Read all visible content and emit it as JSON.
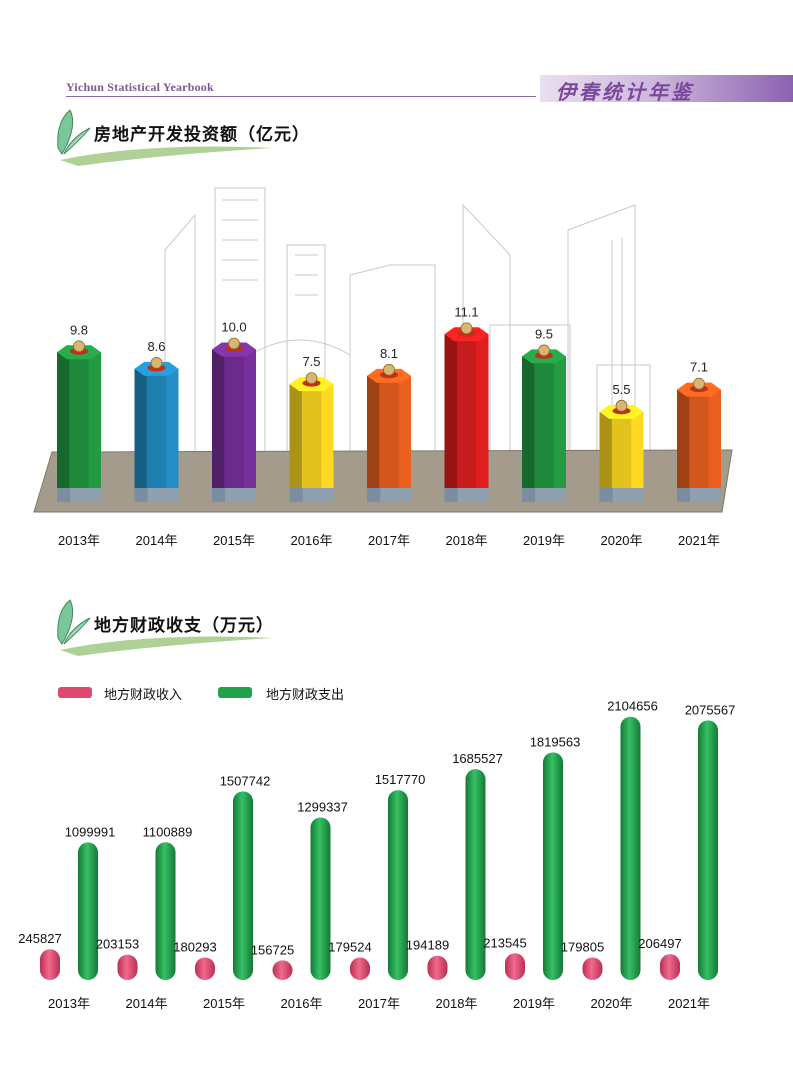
{
  "header": {
    "left_text": "Yichun Statistical Yearbook",
    "right_text": "伊春统计年鉴"
  },
  "colors": {
    "income": "#e0476f",
    "expense": "#1fa24a",
    "header_purple": "#8b62b0"
  },
  "chart_data": [
    {
      "type": "bar",
      "title": "房地产开发投资额（亿元）",
      "categories": [
        "2013年",
        "2014年",
        "2015年",
        "2016年",
        "2017年",
        "2018年",
        "2019年",
        "2020年",
        "2021年"
      ],
      "values": [
        9.8,
        8.6,
        10.0,
        7.5,
        8.1,
        11.1,
        9.5,
        5.5,
        7.1
      ],
      "labels": [
        "9.8",
        "8.6",
        "10.0",
        "7.5",
        "8.1",
        "11.1",
        "9.5",
        "5.5",
        "7.1"
      ],
      "bar_colors": [
        "#1f8a3c",
        "#1e7fb0",
        "#6b2b8c",
        "#e3c21d",
        "#d3561c",
        "#c81b1b",
        "#1f8a3c",
        "#e3c21d",
        "#d3561c"
      ],
      "grid": false
    },
    {
      "type": "bar",
      "title": "地方财政收支（万元）",
      "categories": [
        "2013年",
        "2014年",
        "2015年",
        "2016年",
        "2017年",
        "2018年",
        "2019年",
        "2020年",
        "2021年"
      ],
      "series": [
        {
          "name": "地方财政收入",
          "values": [
            245827,
            203153,
            180293,
            156725,
            179524,
            194189,
            213545,
            179805,
            206497
          ],
          "labels": [
            "245827",
            "203153",
            "180293",
            "156725",
            "179524",
            "194189",
            "213545",
            "179805",
            "206497"
          ],
          "color": "#e0476f"
        },
        {
          "name": "地方财政支出",
          "values": [
            1099991,
            1100889,
            1507742,
            1299337,
            1517770,
            1685527,
            1819563,
            2104656,
            2075567
          ],
          "labels": [
            "1099991",
            "1100889",
            "1507742",
            "1299337",
            "1517770",
            "1685527",
            "1819563",
            "2104656",
            "2075567"
          ],
          "color": "#1fa24a"
        }
      ],
      "legend_position": "top-left",
      "grid": false
    }
  ]
}
